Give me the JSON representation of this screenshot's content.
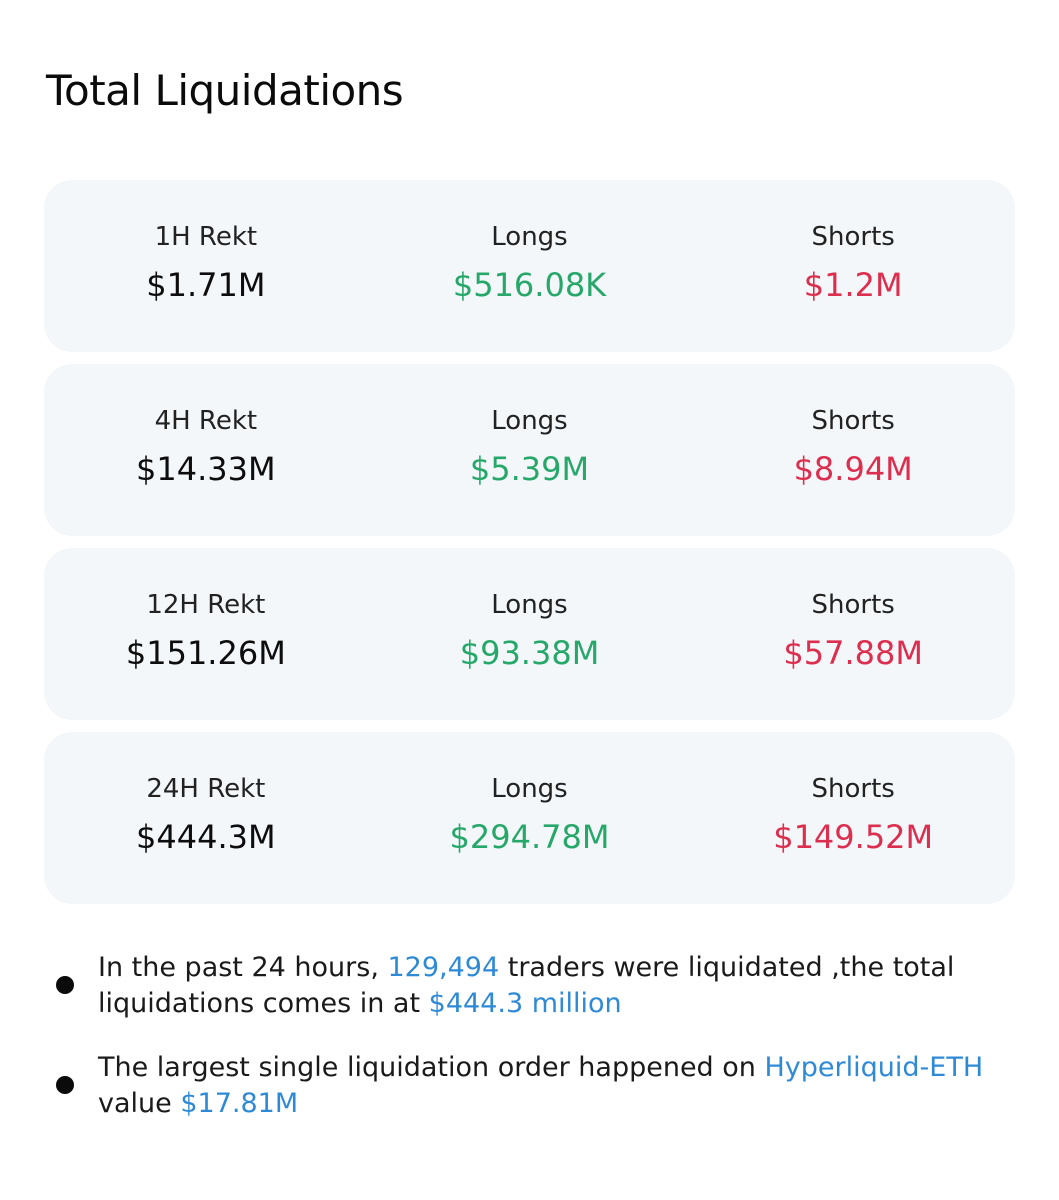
{
  "header": {
    "title": "Total Liquidations"
  },
  "rows": [
    {
      "rekt_label": "1H Rekt",
      "rekt_value": "$1.71M",
      "longs_label": "Longs",
      "longs_value": "$516.08K",
      "shorts_label": "Shorts",
      "shorts_value": "$1.2M"
    },
    {
      "rekt_label": "4H Rekt",
      "rekt_value": "$14.33M",
      "longs_label": "Longs",
      "longs_value": "$5.39M",
      "shorts_label": "Shorts",
      "shorts_value": "$8.94M"
    },
    {
      "rekt_label": "12H Rekt",
      "rekt_value": "$151.26M",
      "longs_label": "Longs",
      "longs_value": "$93.38M",
      "shorts_label": "Shorts",
      "shorts_value": "$57.88M"
    },
    {
      "rekt_label": "24H Rekt",
      "rekt_value": "$444.3M",
      "longs_label": "Longs",
      "longs_value": "$294.78M",
      "shorts_label": "Shorts",
      "shorts_value": "$149.52M"
    }
  ],
  "notes": {
    "note1": {
      "text_a": "In the past 24 hours, ",
      "traders_count": "129,494",
      "text_b": " traders were liquidated ,the total liquidations comes in at ",
      "total_amount": "$444.3 million"
    },
    "note2": {
      "text_a": "The largest single liquidation order happened on ",
      "market": "Hyperliquid-ETH",
      "text_b": " value ",
      "value": "$17.81M"
    }
  },
  "colors": {
    "longs": "#27a86a",
    "shorts": "#dc2f4f",
    "highlight": "#2f8ad6",
    "card_bg": "#f4f7fa"
  }
}
